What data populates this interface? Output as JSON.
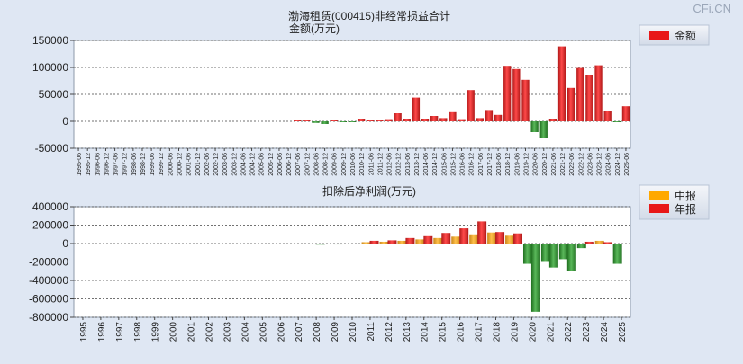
{
  "watermark": "CFi.CN",
  "chart_data": [
    {
      "type": "bar",
      "title": "渤海租赁(000415)非经常损益合计",
      "ylabel": "金额(万元)",
      "legend": [
        "金额"
      ],
      "legend_position": "top-right",
      "ylim": [
        -50000,
        150000
      ],
      "yticks": [
        150000,
        100000,
        50000,
        0,
        -50000
      ],
      "categories": [
        "1995-06",
        "1995-12",
        "1996-06",
        "1996-12",
        "1997-06",
        "1997-12",
        "1998-06",
        "1998-12",
        "1999-06",
        "1999-12",
        "2000-06",
        "2000-12",
        "2001-06",
        "2001-12",
        "2002-06",
        "2002-12",
        "2003-06",
        "2003-12",
        "2004-06",
        "2004-12",
        "2005-06",
        "2005-12",
        "2006-06",
        "2006-12",
        "2007-06",
        "2007-12",
        "2008-06",
        "2008-12",
        "2009-06",
        "2009-12",
        "2010-06",
        "2010-12",
        "2011-06",
        "2011-12",
        "2012-06",
        "2012-12",
        "2013-06",
        "2013-12",
        "2014-06",
        "2014-12",
        "2015-06",
        "2015-12",
        "2016-06",
        "2016-12",
        "2017-06",
        "2017-12",
        "2018-06",
        "2018-12",
        "2019-06",
        "2019-12",
        "2020-06",
        "2020-12",
        "2021-06",
        "2021-12",
        "2022-06",
        "2022-12",
        "2023-06",
        "2023-12",
        "2024-06",
        "2024-12",
        "2025-06"
      ],
      "values": [
        0,
        0,
        0,
        0,
        0,
        0,
        0,
        0,
        0,
        0,
        0,
        0,
        0,
        0,
        0,
        0,
        0,
        0,
        0,
        0,
        0,
        0,
        0,
        0,
        3000,
        3000,
        -3000,
        -5000,
        3000,
        -1500,
        -1000,
        5000,
        3000,
        3000,
        4000,
        15000,
        5000,
        44000,
        5000,
        10000,
        6000,
        17000,
        4000,
        58000,
        6000,
        21000,
        12000,
        103000,
        97000,
        77000,
        -20000,
        -30000,
        5000,
        139000,
        62000,
        99000,
        86000,
        104000,
        19000,
        -1000,
        28000
      ]
    },
    {
      "type": "bar",
      "title": "扣除后净利润(万元)",
      "legend": [
        "中报",
        "年报"
      ],
      "legend_position": "top-right",
      "ylim": [
        -800000,
        400000
      ],
      "yticks": [
        400000,
        200000,
        0,
        -200000,
        -400000,
        -600000,
        -800000
      ],
      "categories": [
        "1995",
        "1996",
        "1997",
        "1998",
        "1999",
        "2000",
        "2001",
        "2002",
        "2003",
        "2004",
        "2005",
        "2006",
        "2007",
        "2008",
        "2009",
        "2010",
        "2011",
        "2012",
        "2013",
        "2014",
        "2015",
        "2016",
        "2017",
        "2018",
        "2019",
        "2020",
        "2021",
        "2022",
        "2023",
        "2024",
        "2025"
      ],
      "series": [
        {
          "name": "中报",
          "values": [
            0,
            0,
            0,
            0,
            0,
            0,
            0,
            0,
            0,
            0,
            0,
            0,
            -5000,
            -8000,
            -6000,
            -3000,
            15000,
            20000,
            30000,
            45000,
            60000,
            75000,
            100000,
            120000,
            85000,
            -220000,
            -190000,
            -170000,
            -50000,
            30000,
            -220000
          ]
        },
        {
          "name": "年报",
          "values": [
            0,
            0,
            0,
            0,
            0,
            0,
            0,
            0,
            0,
            0,
            0,
            0,
            -8000,
            -12000,
            -10000,
            -6000,
            30000,
            35000,
            60000,
            80000,
            115000,
            165000,
            240000,
            125000,
            110000,
            -740000,
            -260000,
            -300000,
            20000,
            15000,
            0
          ]
        }
      ]
    }
  ]
}
